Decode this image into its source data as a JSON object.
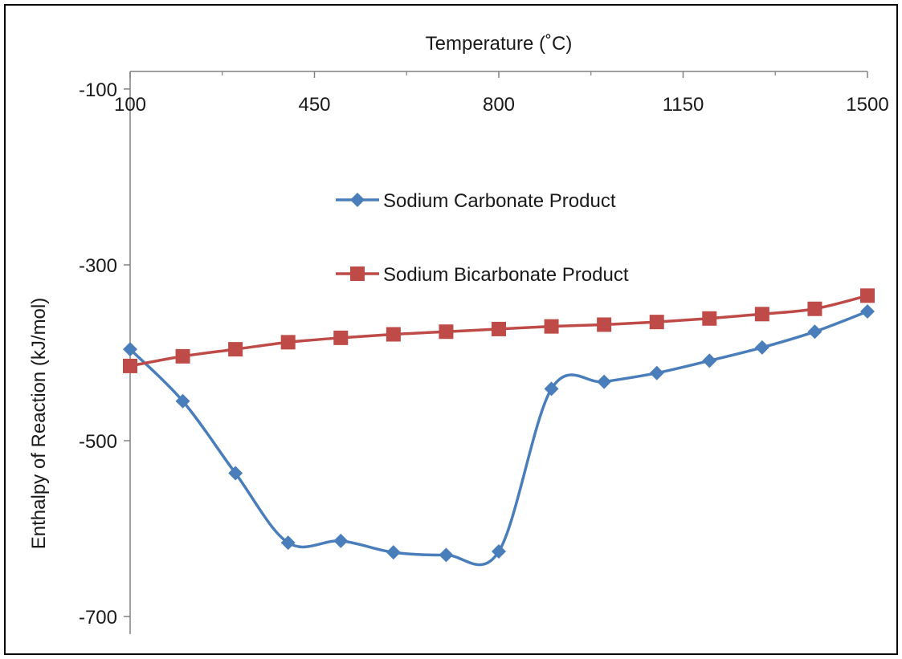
{
  "chart_data": {
    "type": "line",
    "xlabel": "Temperature (˚C)",
    "ylabel": "Enthalpy of Reaction (kJ/mol)",
    "x_axis_position": "top",
    "xlim": [
      100,
      1500
    ],
    "ylim": [
      -720,
      -80
    ],
    "x_ticks": [
      "100",
      "450",
      "800",
      "1150",
      "1500"
    ],
    "y_ticks": [
      "-100",
      "-300",
      "-500",
      "-700"
    ],
    "grid": false,
    "legend_position": "upper-middle",
    "x": [
      100,
      200,
      300,
      400,
      500,
      600,
      700,
      800,
      900,
      1000,
      1100,
      1200,
      1300,
      1400,
      1500
    ],
    "series": [
      {
        "name": "Sodium Carbonate Product",
        "color": "#4a7ebb",
        "marker": "diamond",
        "smooth": true,
        "values": [
          -396,
          -455,
          -537,
          -616,
          -614,
          -627,
          -630,
          -626,
          -441,
          -433,
          -423,
          -409,
          -394,
          -376,
          -353
        ]
      },
      {
        "name": "Sodium Bicarbonate Product",
        "color": "#be4b48",
        "marker": "square",
        "smooth": true,
        "values": [
          -415,
          -404,
          -396,
          -388,
          -383,
          -379,
          -376,
          -373,
          -370,
          -368,
          -365,
          -361,
          -356,
          -350,
          -335
        ]
      }
    ]
  }
}
